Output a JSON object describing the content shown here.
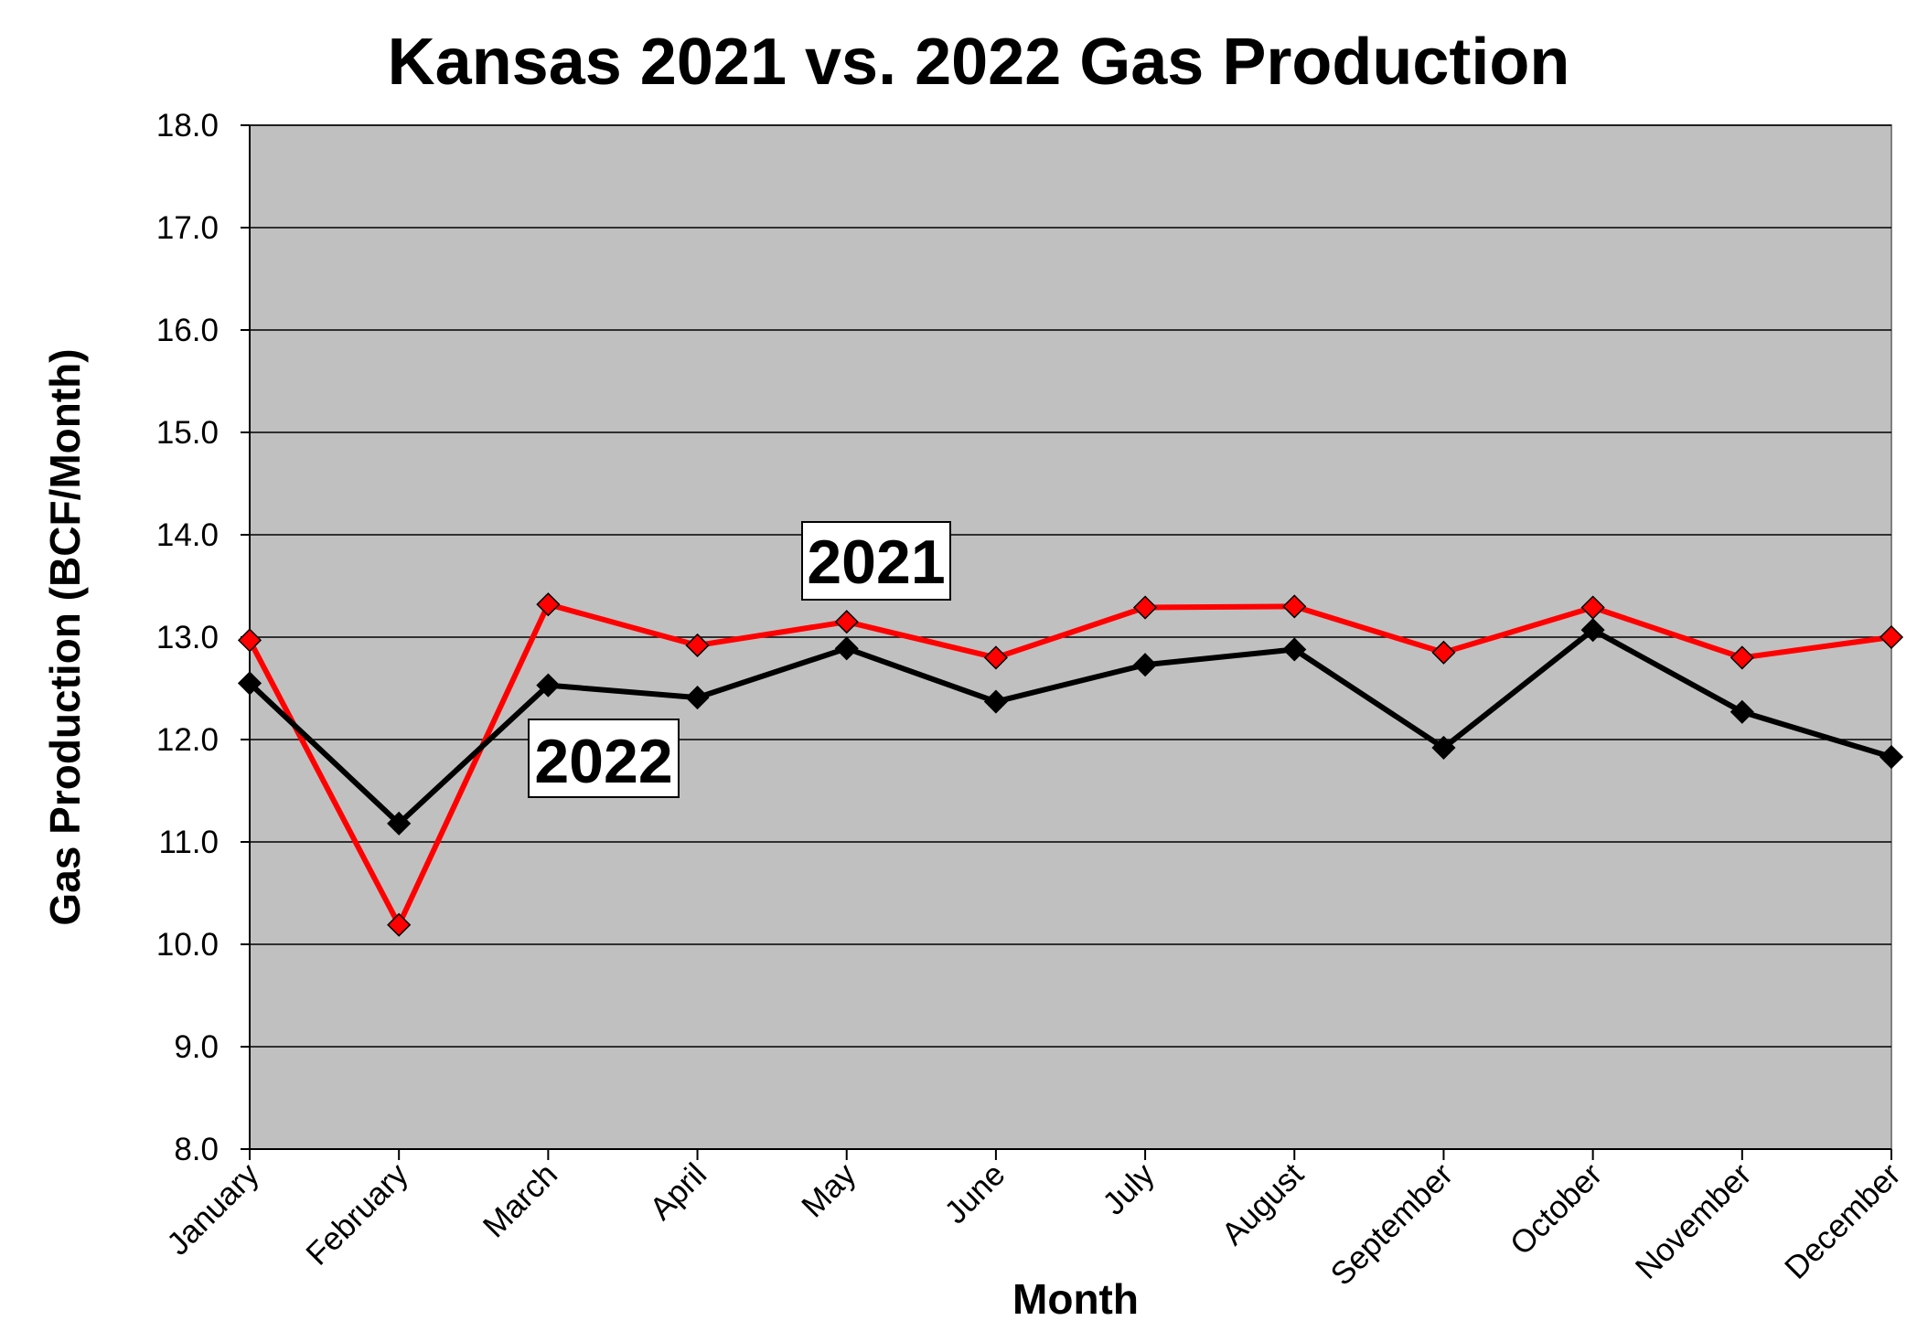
{
  "chart_data": {
    "type": "line",
    "title": "Kansas 2021 vs. 2022 Gas Production",
    "xlabel": "Month",
    "ylabel": "Gas Production (BCF/Month)",
    "ylim": [
      8.0,
      18.0
    ],
    "y_ticks": [
      "8.0",
      "9.0",
      "10.0",
      "11.0",
      "12.0",
      "13.0",
      "14.0",
      "15.0",
      "16.0",
      "17.0",
      "18.0"
    ],
    "categories": [
      "January",
      "February",
      "March",
      "April",
      "May",
      "June",
      "July",
      "August",
      "September",
      "October",
      "November",
      "December"
    ],
    "grid": true,
    "plot_background": "#c0c0c0",
    "series": [
      {
        "name": "2021",
        "color": "#ff0000",
        "marker": "diamond",
        "values": [
          12.97,
          10.19,
          13.32,
          12.92,
          13.15,
          12.8,
          13.29,
          13.3,
          12.85,
          13.29,
          12.8,
          13.0
        ]
      },
      {
        "name": "2022",
        "color": "#000000",
        "marker": "diamond",
        "values": [
          12.55,
          11.18,
          12.53,
          12.41,
          12.89,
          12.37,
          12.73,
          12.88,
          11.92,
          13.07,
          12.27,
          11.83
        ]
      }
    ]
  }
}
